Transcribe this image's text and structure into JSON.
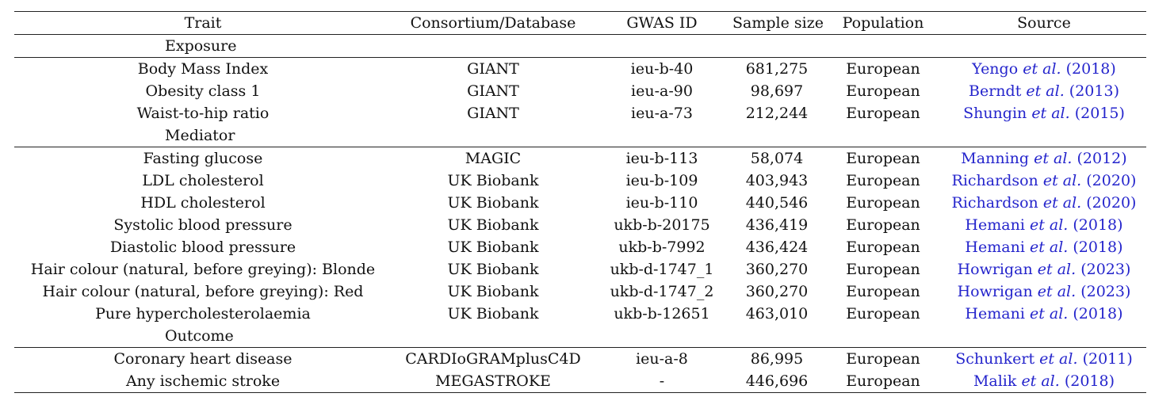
{
  "headers": {
    "trait": "Trait",
    "consortium": "Consortium/Database",
    "gwas_id": "GWAS ID",
    "sample_size": "Sample size",
    "population": "Population",
    "source": "Source"
  },
  "sections": [
    {
      "label": "Exposure",
      "rows": [
        {
          "trait": "Body Mass Index",
          "consortium": "GIANT",
          "gwas_id": "ieu-b-40",
          "sample_size": "681,275",
          "population": "European",
          "source_author": "Yengo",
          "source_etal": "et al.",
          "source_year": "(2018)"
        },
        {
          "trait": "Obesity class 1",
          "consortium": "GIANT",
          "gwas_id": "ieu-a-90",
          "sample_size": "98,697",
          "population": "European",
          "source_author": "Berndt",
          "source_etal": "et al.",
          "source_year": "(2013)"
        },
        {
          "trait": "Waist-to-hip ratio",
          "consortium": "GIANT",
          "gwas_id": "ieu-a-73",
          "sample_size": "212,244",
          "population": "European",
          "source_author": "Shungin",
          "source_etal": "et al.",
          "source_year": "(2015)"
        }
      ]
    },
    {
      "label": "Mediator",
      "rows": [
        {
          "trait": "Fasting glucose",
          "consortium": "MAGIC",
          "gwas_id": "ieu-b-113",
          "sample_size": "58,074",
          "population": "European",
          "source_author": "Manning",
          "source_etal": "et al.",
          "source_year": "(2012)"
        },
        {
          "trait": "LDL cholesterol",
          "consortium": "UK Biobank",
          "gwas_id": "ieu-b-109",
          "sample_size": "403,943",
          "population": "European",
          "source_author": "Richardson",
          "source_etal": "et al.",
          "source_year": "(2020)"
        },
        {
          "trait": "HDL cholesterol",
          "consortium": "UK Biobank",
          "gwas_id": "ieu-b-110",
          "sample_size": "440,546",
          "population": "European",
          "source_author": "Richardson",
          "source_etal": "et al.",
          "source_year": "(2020)"
        },
        {
          "trait": "Systolic blood pressure",
          "consortium": "UK Biobank",
          "gwas_id": "ukb-b-20175",
          "sample_size": "436,419",
          "population": "European",
          "source_author": "Hemani",
          "source_etal": "et al.",
          "source_year": "(2018)"
        },
        {
          "trait": "Diastolic blood pressure",
          "consortium": "UK Biobank",
          "gwas_id": "ukb-b-7992",
          "sample_size": "436,424",
          "population": "European",
          "source_author": "Hemani",
          "source_etal": "et al.",
          "source_year": "(2018)"
        },
        {
          "trait": "Hair colour (natural, before greying): Blonde",
          "consortium": "UK Biobank",
          "gwas_id": "ukb-d-1747_1",
          "sample_size": "360,270",
          "population": "European",
          "source_author": "Howrigan",
          "source_etal": "et al.",
          "source_year": "(2023)"
        },
        {
          "trait": "Hair colour (natural, before greying): Red",
          "consortium": "UK Biobank",
          "gwas_id": "ukb-d-1747_2",
          "sample_size": "360,270",
          "population": "European",
          "source_author": "Howrigan",
          "source_etal": "et al.",
          "source_year": "(2023)"
        },
        {
          "trait": "Pure hypercholesterolaemia",
          "consortium": "UK Biobank",
          "gwas_id": "ukb-b-12651",
          "sample_size": "463,010",
          "population": "European",
          "source_author": "Hemani",
          "source_etal": "et al.",
          "source_year": "(2018)"
        }
      ]
    },
    {
      "label": "Outcome",
      "rows": [
        {
          "trait": "Coronary heart disease",
          "consortium": "CARDIoGRAMplusC4D",
          "gwas_id": "ieu-a-8",
          "sample_size": "86,995",
          "population": "European",
          "source_author": "Schunkert",
          "source_etal": "et al.",
          "source_year": "(2011)"
        },
        {
          "trait": "Any ischemic stroke",
          "consortium": "MEGASTROKE",
          "gwas_id": "-",
          "sample_size": "446,696",
          "population": "European",
          "source_author": "Malik",
          "source_etal": "et al.",
          "source_year": "(2018)"
        }
      ]
    }
  ],
  "colors": {
    "citation_link": "#2424cc",
    "rule": "#222222"
  }
}
